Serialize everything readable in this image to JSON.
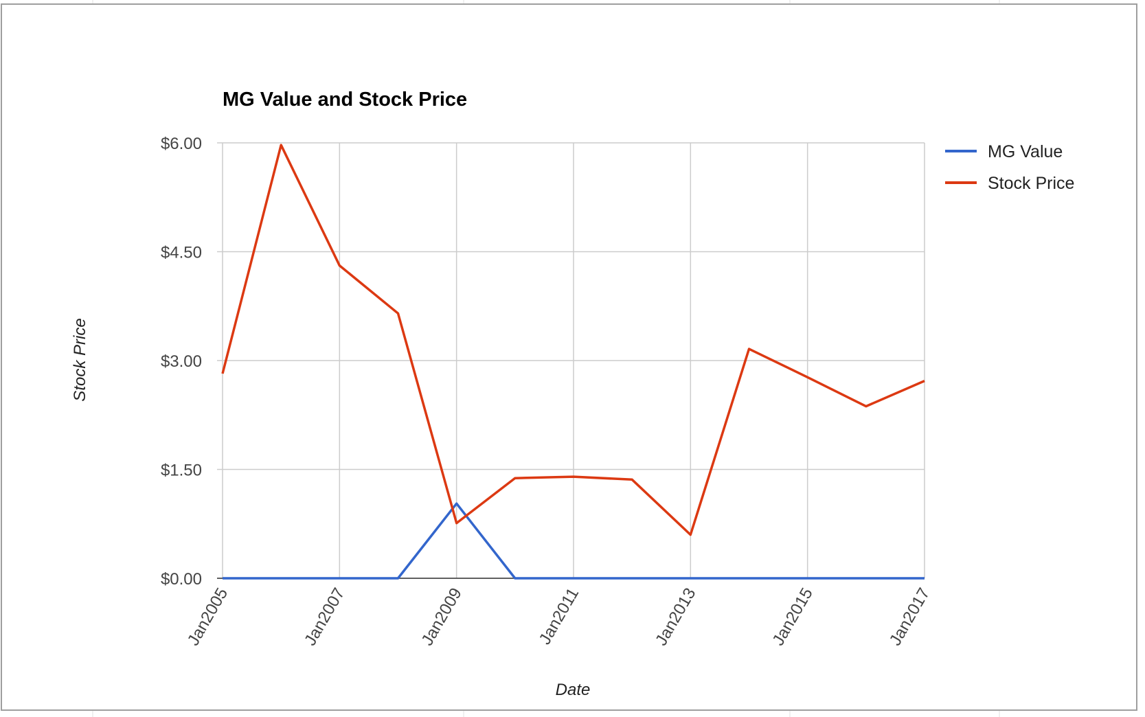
{
  "chart_data": {
    "type": "line",
    "title": "MG Value and Stock Price",
    "xlabel": "Date",
    "ylabel": "Stock Price",
    "x": [
      "2005-01",
      "2006-01",
      "2007-01",
      "2008-01",
      "2009-01",
      "2010-01",
      "2011-01",
      "2012-01",
      "2013-01",
      "2014-01",
      "2015-01",
      "2016-01",
      "2017-01"
    ],
    "x_tick_labels": [
      "Jan2005",
      "Jan2007",
      "Jan2009",
      "Jan2011",
      "Jan2013",
      "Jan2015",
      "Jan2017"
    ],
    "y_tick_labels": [
      "$0.00",
      "$1.50",
      "$3.00",
      "$4.50",
      "$6.00"
    ],
    "y_ticks": [
      0,
      1.5,
      3,
      4.5,
      6
    ],
    "ylim": [
      0,
      6
    ],
    "grid": true,
    "legend_position": "right",
    "series": [
      {
        "name": "MG Value",
        "color": "#3366cc",
        "values": [
          0,
          0,
          0,
          0,
          1.03,
          0,
          0,
          0,
          0,
          0,
          0,
          0,
          0
        ]
      },
      {
        "name": "Stock Price",
        "color": "#dc3912",
        "values": [
          2.82,
          5.97,
          4.31,
          3.65,
          0.76,
          1.38,
          1.4,
          1.36,
          0.6,
          3.16,
          2.77,
          2.37,
          2.72
        ]
      }
    ]
  }
}
